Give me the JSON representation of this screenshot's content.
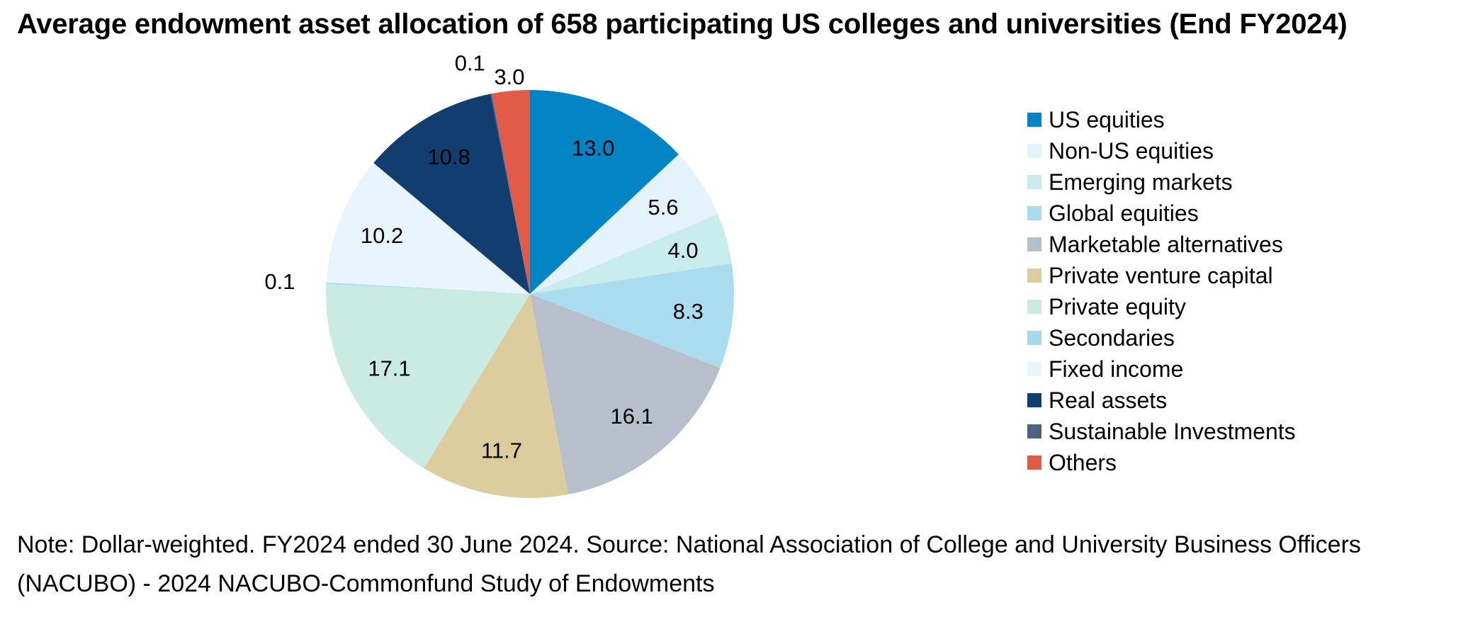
{
  "chart_data": {
    "type": "pie",
    "title": "Average endowment asset allocation of 658 participating US colleges and universities (End FY2024)",
    "note": "Note: Dollar-weighted. FY2024 ended 30 June 2024. Source: National Association of College and University Business Officers (NACUBO) - 2024 NACUBO-Commonfund Study of Endowments",
    "legend_position": "right",
    "start": "top, clockwise",
    "slices": [
      {
        "name": "US equities",
        "value": 13.0,
        "label": "13.0",
        "color": "#0284c4"
      },
      {
        "name": "Non-US equities",
        "value": 5.6,
        "label": "5.6",
        "color": "#e3f2fb"
      },
      {
        "name": "Emerging markets",
        "value": 4.0,
        "label": "4.0",
        "color": "#c8ebec"
      },
      {
        "name": "Global equities",
        "value": 8.3,
        "label": "8.3",
        "color": "#aadcf0"
      },
      {
        "name": "Marketable alternatives",
        "value": 16.1,
        "label": "16.1",
        "color": "#b6bfcc"
      },
      {
        "name": "Private venture capital",
        "value": 11.7,
        "label": "11.7",
        "color": "#ddcc9d"
      },
      {
        "name": "Private equity",
        "value": 17.1,
        "label": "17.1",
        "color": "#c9ebe2"
      },
      {
        "name": "Secondaries",
        "value": 0.1,
        "label": "0.1",
        "color": "#a7d8ec"
      },
      {
        "name": "Fixed income",
        "value": 10.2,
        "label": "10.2",
        "color": "#e8f5fc"
      },
      {
        "name": "Real assets",
        "value": 10.8,
        "label": "10.8",
        "color": "#113e6e"
      },
      {
        "name": "Sustainable Investments",
        "value": 0.1,
        "label": "0.1",
        "color": "#4a6380"
      },
      {
        "name": "Others",
        "value": 3.0,
        "label": "3.0",
        "color": "#e25a48"
      }
    ]
  }
}
